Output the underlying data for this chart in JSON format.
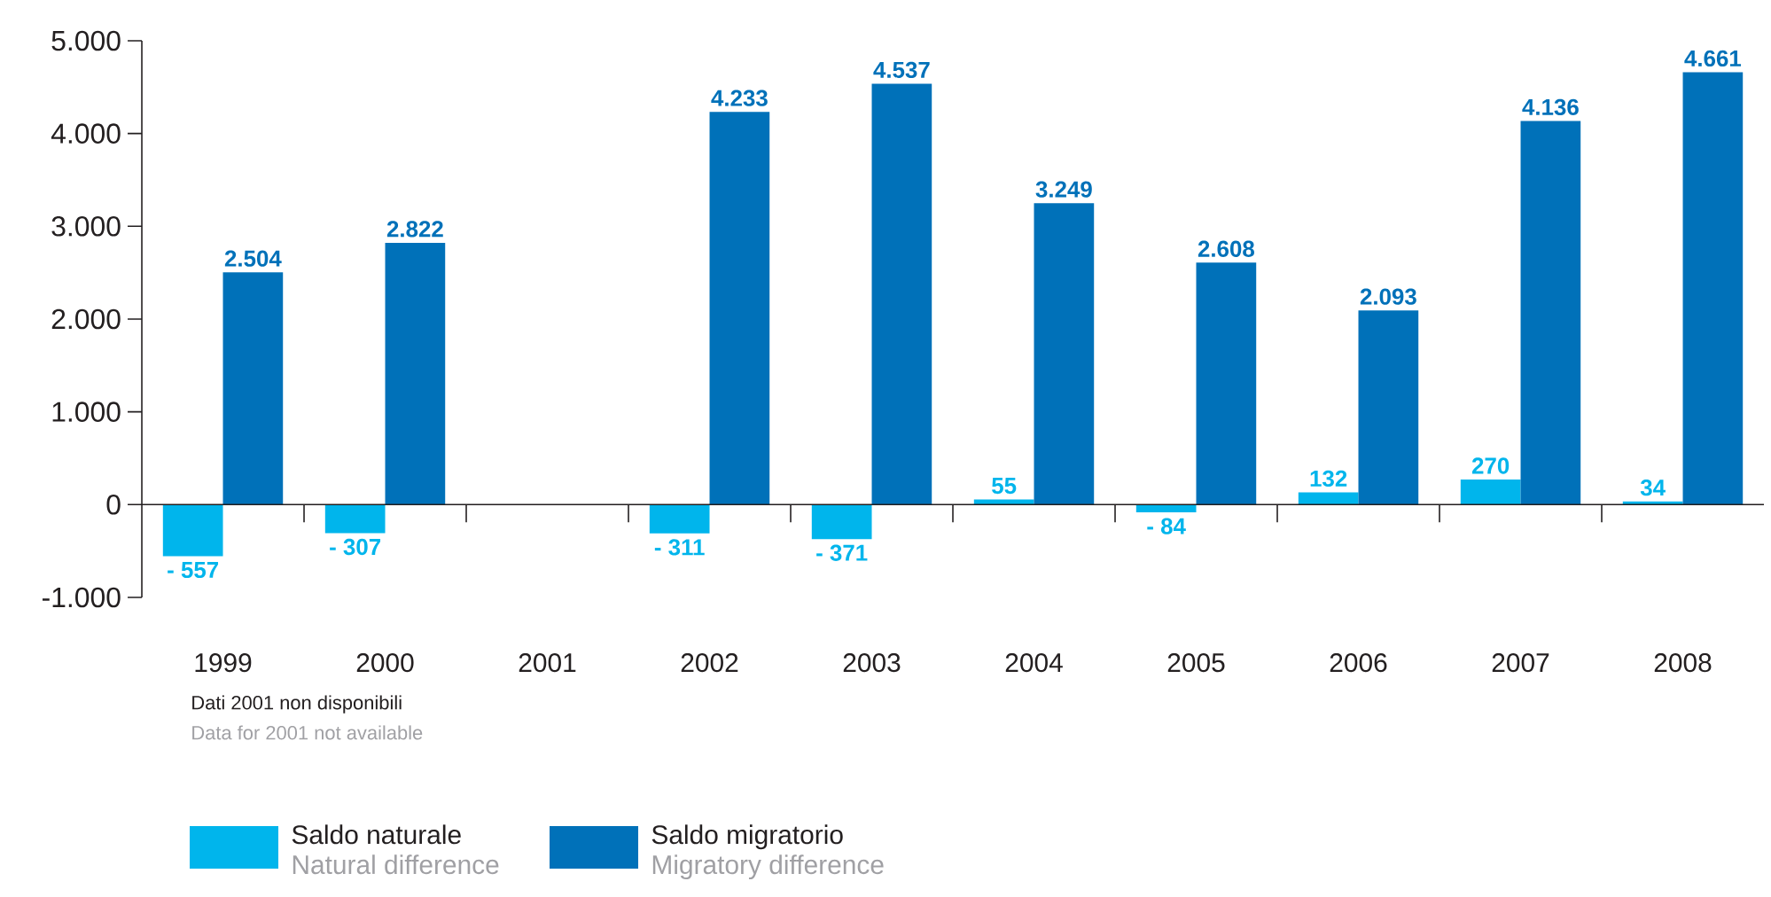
{
  "chart_data": {
    "type": "bar",
    "categories": [
      "1999",
      "2000",
      "2001",
      "2002",
      "2003",
      "2004",
      "2005",
      "2006",
      "2007",
      "2008"
    ],
    "series": [
      {
        "name": "Saldo naturale",
        "color": "#00b5ec",
        "values": [
          -557,
          -307,
          null,
          -311,
          -371,
          55,
          -84,
          132,
          270,
          34
        ],
        "value_labels": [
          "- 557",
          "- 307",
          null,
          "- 311",
          "- 371",
          "55",
          "- 84",
          "132",
          "270",
          "34"
        ]
      },
      {
        "name": "Saldo migratorio",
        "color": "#0071b9",
        "values": [
          2504,
          2822,
          null,
          4233,
          4537,
          3249,
          2608,
          2093,
          4136,
          4661
        ],
        "value_labels": [
          "2.504",
          "2.822",
          null,
          "4.233",
          "4.537",
          "3.249",
          "2.608",
          "2.093",
          "4.136",
          "4.661"
        ]
      }
    ],
    "ylim": [
      -1000,
      5000
    ],
    "yticks": [
      {
        "value": -1000,
        "label": "-1.000"
      },
      0,
      {
        "value": 1000,
        "label": "1.000"
      },
      {
        "value": 2000,
        "label": "2.000"
      },
      {
        "value": 3000,
        "label": "3.000"
      },
      {
        "value": 4000,
        "label": "4.000"
      },
      {
        "value": 5000,
        "label": "5.000"
      }
    ],
    "grid": false,
    "ref_lines": [
      {
        "axis": "y",
        "value": 0,
        "color": "#231f20"
      }
    ],
    "legend": "bottom left",
    "annotations": [
      "Dati 2001 non disponibili",
      "Data for 2001 not available",
      "Natural difference",
      "Migratory difference"
    ]
  }
}
